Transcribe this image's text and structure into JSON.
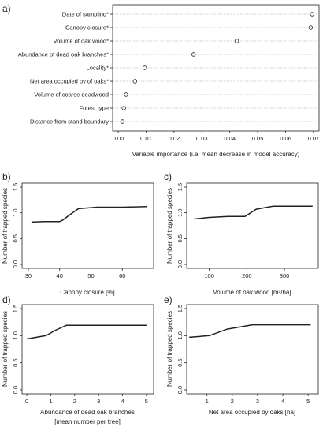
{
  "chart_data": [
    {
      "panel": "a)",
      "type": "scatter",
      "xlabel": "Variable importance (i.e. mean decrease in model accuracy)",
      "xlim": [
        -0.002,
        0.072
      ],
      "xticks": [
        "0.00",
        "0.01",
        "0.02",
        "0.03",
        "0.04",
        "0.05",
        "0.06",
        "0.07"
      ],
      "categories": [
        "Date of sampling*",
        "Canopy closure*",
        "Volume of oak wood*",
        "Abundance of dead oak branches*",
        "Locality*",
        "Net area occupied by of oaks*",
        "Volume of coarse deadwood",
        "Forest type",
        "Distance from stand boundary"
      ],
      "values": [
        0.0695,
        0.069,
        0.0425,
        0.027,
        0.0095,
        0.006,
        0.0028,
        0.002,
        0.0015
      ]
    },
    {
      "panel": "b)",
      "type": "line",
      "xlabel": "Canopy closure [%]",
      "ylabel": "Number of trapped species",
      "xlim": [
        28,
        70
      ],
      "ylim": [
        0,
        1.5
      ],
      "xticks": [
        "30",
        "40",
        "50",
        "60"
      ],
      "yticks": [
        "0.0",
        "0.5",
        "1.0",
        "1.5"
      ],
      "x": [
        31,
        35,
        40,
        41,
        43,
        46,
        52,
        60,
        68
      ],
      "y": [
        0.82,
        0.83,
        0.83,
        0.86,
        0.95,
        1.08,
        1.11,
        1.11,
        1.12
      ]
    },
    {
      "panel": "c)",
      "type": "line",
      "xlabel": "Volume of oak wood [m³/ha]",
      "ylabel": "Number of trapped species",
      "xlim": [
        40,
        390
      ],
      "ylim": [
        0,
        1.5
      ],
      "xticks": [
        "100",
        "200",
        "300"
      ],
      "yticks": [
        "0.0",
        "0.5",
        "1.0",
        "1.5"
      ],
      "x": [
        60,
        100,
        150,
        195,
        225,
        270,
        320,
        375
      ],
      "y": [
        0.88,
        0.91,
        0.93,
        0.93,
        1.07,
        1.13,
        1.13,
        1.13
      ]
    },
    {
      "panel": "d)",
      "type": "line",
      "xlabel": "Abundance of dead oak branches",
      "xlabel2": "[mean number per tree]",
      "ylabel": "Number of trapped species",
      "xlim": [
        -0.2,
        5.3
      ],
      "ylim": [
        0,
        1.5
      ],
      "xticks": [
        "0",
        "1",
        "2",
        "3",
        "4",
        "5"
      ],
      "yticks": [
        "0.0",
        "0.5",
        "1.0",
        "1.5"
      ],
      "x": [
        0,
        0.8,
        1.2,
        1.65,
        2.5,
        5
      ],
      "y": [
        0.94,
        1.0,
        1.1,
        1.19,
        1.19,
        1.19
      ]
    },
    {
      "panel": "e)",
      "type": "line",
      "xlabel": "Net area occupied by oaks [ha]",
      "ylabel": "Number of trapped species",
      "xlim": [
        0.2,
        5.4
      ],
      "ylim": [
        0,
        1.5
      ],
      "xticks": [
        "1",
        "2",
        "3",
        "4",
        "5"
      ],
      "yticks": [
        "0.0",
        "0.5",
        "1.0",
        "1.5"
      ],
      "x": [
        0.3,
        1.1,
        1.8,
        2.8,
        4,
        5.1
      ],
      "y": [
        0.97,
        1.0,
        1.12,
        1.2,
        1.2,
        1.2
      ]
    }
  ]
}
